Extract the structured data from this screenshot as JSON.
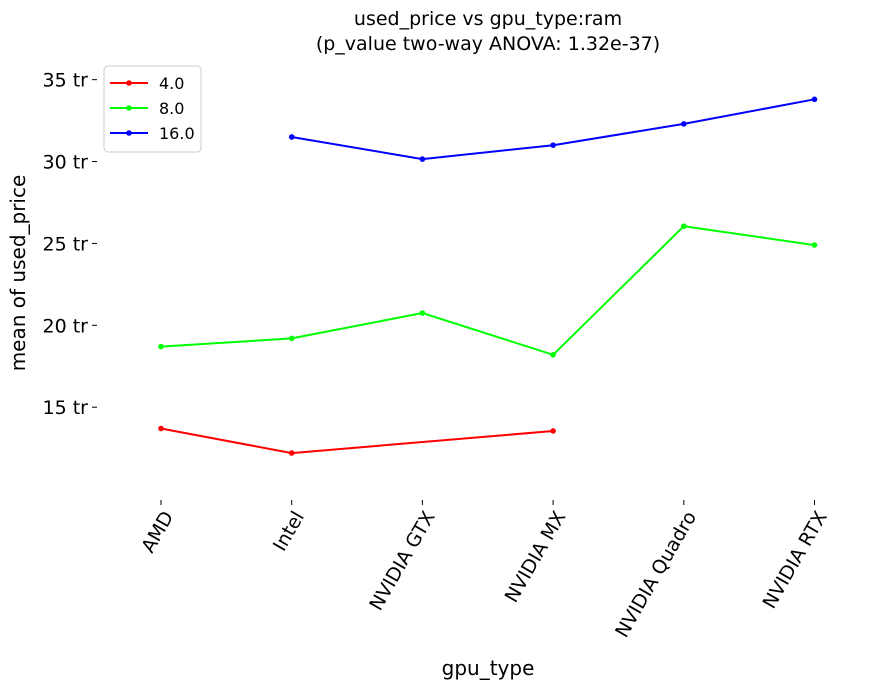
{
  "chart_data": {
    "type": "line",
    "title": "used_price vs gpu_type:ram",
    "subtitle": "(p_value two-way ANOVA: 1.32e-37)",
    "xlabel": "gpu_type",
    "ylabel": "mean of used_price",
    "categories": [
      "AMD",
      "Intel",
      "NVIDIA GTX",
      "NVIDIA MX",
      "NVIDIA Quadro",
      "NVIDIA RTX"
    ],
    "y_ticks": [
      {
        "value": 15,
        "label": "15 tr"
      },
      {
        "value": 20,
        "label": "20 tr"
      },
      {
        "value": 25,
        "label": "25 tr"
      },
      {
        "value": 30,
        "label": "30 tr"
      },
      {
        "value": 35,
        "label": "35 tr"
      }
    ],
    "ylim": [
      10.25,
      36.2
    ],
    "grid": false,
    "legend_position": "top-left",
    "legend_title": "",
    "series": [
      {
        "name": "4.0",
        "color": "#ff0000",
        "values": [
          13.7,
          12.2,
          null,
          13.55,
          null,
          null
        ]
      },
      {
        "name": "8.0",
        "color": "#00ff00",
        "values": [
          18.7,
          19.2,
          20.75,
          18.2,
          26.05,
          24.9
        ]
      },
      {
        "name": "16.0",
        "color": "#0000ff",
        "values": [
          null,
          31.5,
          30.15,
          31.0,
          32.3,
          33.8
        ]
      }
    ]
  }
}
